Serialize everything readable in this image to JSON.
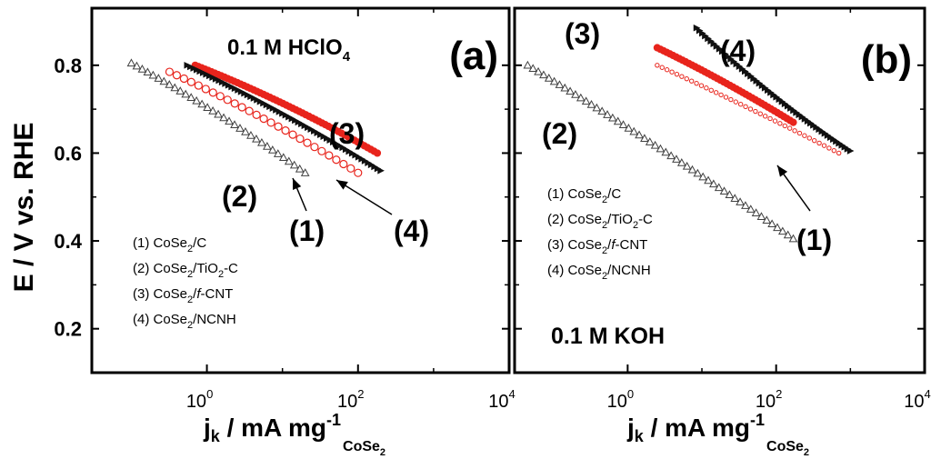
{
  "chart_data": [
    {
      "type": "scatter",
      "panel_label": "(a)",
      "condition": "0.1 M HClO",
      "condition_sub": "4",
      "xscale": "log",
      "xlim": [
        0.03,
        10000
      ],
      "ylim": [
        0.1,
        0.93
      ],
      "x_tick_labels": [
        "10",
        "10",
        "10"
      ],
      "x_tick_exponents": [
        "0",
        "2",
        "4"
      ],
      "y_tick_labels": [
        "0.2",
        "0.4",
        "0.6",
        "0.8"
      ],
      "y_tick_values": [
        0.2,
        0.4,
        0.6,
        0.8
      ],
      "xlabel_main": "j",
      "xlabel_k": "k",
      "xlabel_rest": " / mA mg",
      "xlabel_exp": "-1",
      "xlabel_sub": "CoSe",
      "xlabel_sub2": "2",
      "legend": [
        {
          "num": "(1) CoSe",
          "sub": "2",
          "rest": "/C"
        },
        {
          "num": "(2) CoSe",
          "sub": "2",
          "rest": "/TiO",
          "sub2": "2",
          "rest2": "-C"
        },
        {
          "num": "(3) CoSe",
          "sub": "2",
          "rest": "/",
          "ital": "f",
          "rest2": "-CNT"
        },
        {
          "num": "(4) CoSe",
          "sub": "2",
          "rest": "/NCNH"
        }
      ],
      "series": [
        {
          "label": "(1)",
          "color": "#e8241c",
          "marker": "circle",
          "x_start": 0.32,
          "x_end": 100,
          "y_start": 0.785,
          "y_end": 0.555,
          "curve": 0.4
        },
        {
          "label": "(2)",
          "color": "#404040",
          "marker": "triangle",
          "x_start": 0.1,
          "x_end": 20,
          "y_start": 0.805,
          "y_end": 0.555,
          "curve": 0.4
        },
        {
          "label": "(3)",
          "color": "#e8241c",
          "marker": "filled",
          "x_start": 0.7,
          "x_end": 180,
          "y_start": 0.8,
          "y_end": 0.6,
          "curve": 0.45
        },
        {
          "label": "(4)",
          "color": "#111111",
          "marker": "dense",
          "x_start": 0.55,
          "x_end": 200,
          "y_start": 0.8,
          "y_end": 0.56,
          "curve": 0.4
        }
      ]
    },
    {
      "type": "scatter",
      "panel_label": "(b)",
      "condition": "0.1 M KOH",
      "xscale": "log",
      "xlim": [
        0.03,
        10000
      ],
      "ylim": [
        0.1,
        0.93
      ],
      "x_tick_labels": [
        "10",
        "10",
        "10"
      ],
      "x_tick_exponents": [
        "0",
        "2",
        "4"
      ],
      "xlabel_main": "j",
      "xlabel_k": "k",
      "xlabel_rest": " / mA mg",
      "xlabel_exp": "-1",
      "xlabel_sub": "CoSe",
      "xlabel_sub2": "2",
      "legend": [
        {
          "num": "(1) CoSe",
          "sub": "2",
          "rest": "/C"
        },
        {
          "num": "(2) CoSe",
          "sub": "2",
          "rest": "/TiO",
          "sub2": "2",
          "rest2": "-C"
        },
        {
          "num": "(3) CoSe",
          "sub": "2",
          "rest": "/",
          "ital": "f",
          "rest2": "-CNT"
        },
        {
          "num": "(4) CoSe",
          "sub": "2",
          "rest": "/NCNH"
        }
      ],
      "series": [
        {
          "label": "(1)",
          "color": "#e8241c",
          "marker": "sparse",
          "x_start": 2.5,
          "x_end": 700,
          "y_start": 0.8,
          "y_end": 0.6,
          "curve": 0.15
        },
        {
          "label": "(2)",
          "color": "#404040",
          "marker": "triangle",
          "x_start": 0.045,
          "x_end": 170,
          "y_start": 0.8,
          "y_end": 0.405,
          "curve": 0.35
        },
        {
          "label": "(3)",
          "color": "#e8241c",
          "marker": "filled",
          "x_start": 2.5,
          "x_end": 170,
          "y_start": 0.84,
          "y_end": 0.67,
          "curve": 0.25
        },
        {
          "label": "(4)",
          "color": "#111111",
          "marker": "dense",
          "x_start": 8.5,
          "x_end": 1000,
          "y_start": 0.885,
          "y_end": 0.605,
          "curve": -0.6
        }
      ]
    }
  ],
  "y_axis_label": "E / V vs. RHE"
}
